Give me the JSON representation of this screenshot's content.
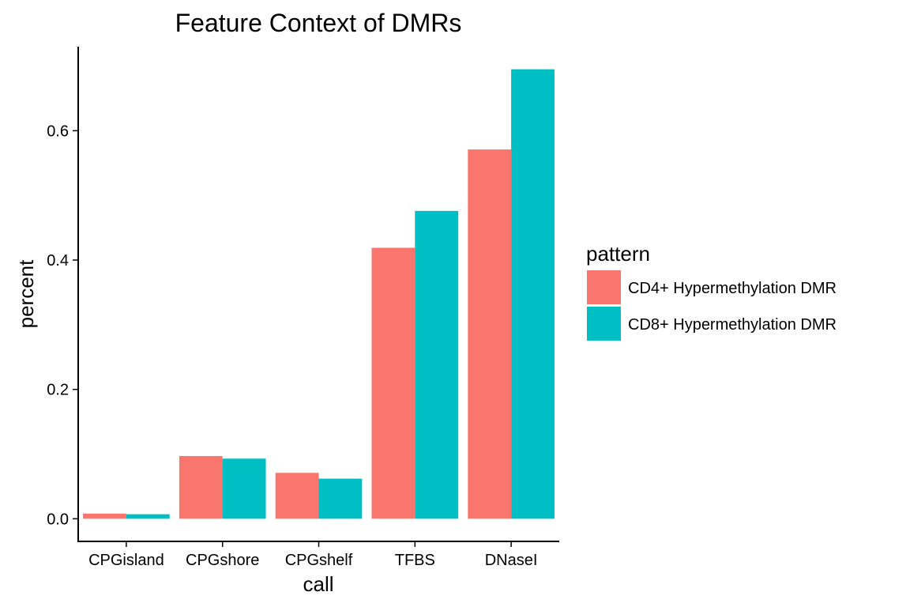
{
  "chart_data": {
    "type": "bar",
    "title": "Feature Context of DMRs",
    "xlabel": "call",
    "ylabel": "percent",
    "categories": [
      "CPGisland",
      "CPGshore",
      "CPGshelf",
      "TFBS",
      "DNaseI"
    ],
    "series": [
      {
        "name": "CD4+ Hypermethylation DMR",
        "color": "#F8766D",
        "values": [
          0.008,
          0.097,
          0.071,
          0.419,
          0.571
        ]
      },
      {
        "name": "CD8+ Hypermethylation DMR",
        "color": "#00BFC4",
        "values": [
          0.007,
          0.093,
          0.062,
          0.476,
          0.695
        ]
      }
    ],
    "yticks": [
      "0.0",
      "0.2",
      "0.4",
      "0.6"
    ],
    "ylim": [
      -0.035,
      0.73
    ],
    "legend_title": "pattern",
    "legend_position": "right",
    "grid": false
  }
}
